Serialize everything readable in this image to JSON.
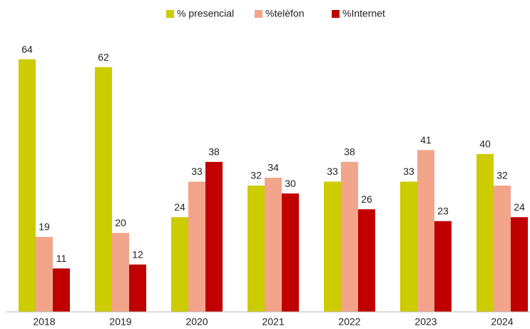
{
  "chart_data": {
    "type": "bar",
    "categories": [
      "2018",
      "2019",
      "2020",
      "2021",
      "2022",
      "2023",
      "2024"
    ],
    "series": [
      {
        "name": "% presencial",
        "color": "#cccc00",
        "values": [
          64,
          62,
          24,
          32,
          33,
          33,
          40
        ]
      },
      {
        "name": "%telèfon",
        "color": "#f2a58a",
        "values": [
          19,
          20,
          33,
          34,
          38,
          41,
          32
        ]
      },
      {
        "name": "%Internet",
        "color": "#c00000",
        "values": [
          11,
          12,
          38,
          30,
          26,
          23,
          24
        ]
      }
    ],
    "legend": "top"
  }
}
